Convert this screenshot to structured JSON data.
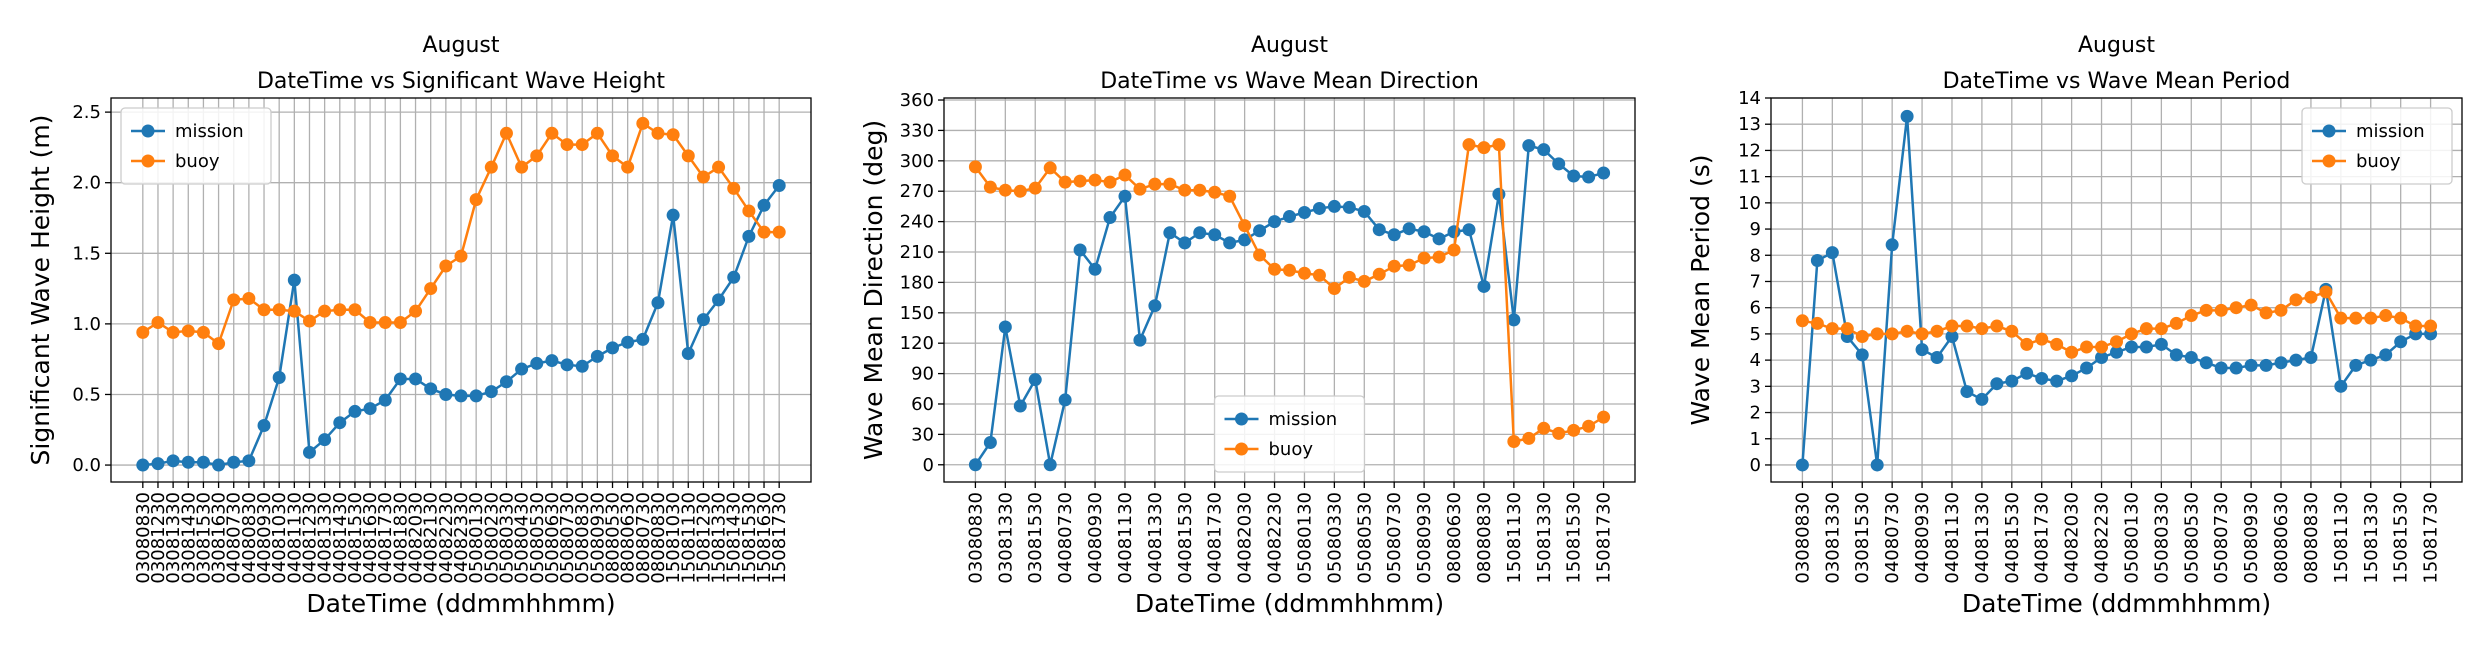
{
  "chart_data": [
    {
      "type": "line",
      "title": "August",
      "subtitle": "DateTime vs Significant Wave Height",
      "xlabel": "DateTime (ddmmhhmm)",
      "ylabel": "Significant Wave Height (m)",
      "categories": [
        "03080830",
        "03081230",
        "03081330",
        "03081430",
        "03081530",
        "03081630",
        "04080730",
        "04080830",
        "04080930",
        "04081030",
        "04081130",
        "04081230",
        "04081330",
        "04081430",
        "04081530",
        "04081630",
        "04081730",
        "04081830",
        "04082030",
        "04082130",
        "04082230",
        "04082330",
        "05080130",
        "05080230",
        "05080330",
        "05080430",
        "05080530",
        "05080630",
        "05080730",
        "05080830",
        "05080930",
        "08080530",
        "08080630",
        "08080730",
        "08080830",
        "15081030",
        "15081130",
        "15081230",
        "15081330",
        "15081430",
        "15081530",
        "15081630",
        "15081730"
      ],
      "series": [
        {
          "name": "mission",
          "color": "#1f77b4",
          "values": [
            0,
            0.01,
            0.03,
            0.02,
            0.02,
            0,
            0.02,
            0.03,
            0.28,
            0.62,
            1.31,
            0.09,
            0.18,
            0.3,
            0.38,
            0.4,
            0.46,
            0.61,
            0.61,
            0.54,
            0.5,
            0.49,
            0.49,
            0.52,
            0.59,
            0.68,
            0.72,
            0.74,
            0.71,
            0.7,
            0.77,
            0.83,
            0.87,
            0.89,
            1.15,
            1.77,
            0.79,
            1.03,
            1.17,
            1.33,
            1.62,
            1.84,
            1.98
          ]
        },
        {
          "name": "buoy",
          "color": "#ff7f0e",
          "values": [
            0.94,
            1.01,
            0.94,
            0.95,
            0.94,
            0.86,
            1.17,
            1.18,
            1.1,
            1.1,
            1.09,
            1.02,
            1.09,
            1.1,
            1.1,
            1.01,
            1.01,
            1.01,
            1.09,
            1.25,
            1.41,
            1.48,
            1.88,
            2.11,
            2.35,
            2.11,
            2.19,
            2.35,
            2.27,
            2.27,
            2.35,
            2.19,
            2.11,
            2.42,
            2.35,
            2.34,
            2.19,
            2.04,
            2.11,
            1.96,
            1.8,
            1.65,
            1.65
          ]
        }
      ],
      "ylim": [
        -0.12,
        2.6
      ],
      "yticks": [
        {
          "value": 0,
          "label": "0.0"
        },
        0.5,
        {
          "value": 1,
          "label": "1.0"
        },
        1.5,
        {
          "value": 2,
          "label": "2.0"
        },
        2.5
      ],
      "grid": true,
      "legend": "upper left"
    },
    {
      "type": "line",
      "title": "August",
      "subtitle": "DateTime vs Wave Mean Direction",
      "xlabel": "DateTime (ddmmhhmm)",
      "ylabel": "Wave Mean Direction (deg)",
      "categories": [
        "03080830",
        null,
        "03081330",
        null,
        "03081530",
        null,
        "04080730",
        null,
        "04080930",
        null,
        "04081130",
        null,
        "04081330",
        null,
        "04081530",
        null,
        "04081730",
        null,
        "04082030",
        null,
        "04082230",
        null,
        "05080130",
        null,
        "05080330",
        null,
        "05080530",
        null,
        "05080730",
        null,
        "05080930",
        null,
        "08080630",
        null,
        "08080830",
        null,
        "15081130",
        null,
        "15081330",
        null,
        "15081530",
        null,
        "15081730"
      ],
      "series": [
        {
          "name": "mission",
          "color": "#1f77b4",
          "values": [
            0,
            22,
            136,
            58,
            84,
            0,
            64,
            212,
            193,
            244,
            265,
            123,
            157,
            229,
            219,
            229,
            227,
            219,
            222,
            231,
            240,
            245,
            249,
            253,
            255,
            254,
            250,
            232,
            227,
            233,
            230,
            223,
            230,
            232,
            176,
            267,
            143,
            315,
            311,
            297,
            285,
            284,
            288
          ]
        },
        {
          "name": "buoy",
          "color": "#ff7f0e",
          "values": [
            294,
            274,
            271,
            270,
            273,
            293,
            279,
            280,
            281,
            279,
            286,
            272,
            277,
            277,
            271,
            271,
            269,
            265,
            236,
            207,
            193,
            192,
            189,
            187,
            174,
            185,
            181,
            188,
            196,
            197,
            204,
            205,
            212,
            316,
            313,
            316,
            23,
            26,
            36,
            31,
            34,
            38,
            47
          ]
        }
      ],
      "ylim": [
        -17,
        362
      ],
      "yticks": [
        0,
        30,
        60,
        90,
        120,
        150,
        180,
        210,
        240,
        270,
        300,
        330,
        360
      ],
      "grid": true,
      "legend": "lower center"
    },
    {
      "type": "line",
      "title": "August",
      "subtitle": "DateTime vs Wave Mean Period",
      "xlabel": "DateTime (ddmmhhmm)",
      "ylabel": "Wave Mean Period (s)",
      "categories": [
        "03080830",
        null,
        "03081330",
        null,
        "03081530",
        null,
        "04080730",
        null,
        "04080930",
        null,
        "04081130",
        null,
        "04081330",
        null,
        "04081530",
        null,
        "04081730",
        null,
        "04082030",
        null,
        "04082230",
        null,
        "05080130",
        null,
        "05080330",
        null,
        "05080530",
        null,
        "05080730",
        null,
        "05080930",
        null,
        "08080630",
        null,
        "08080830",
        null,
        "15081130",
        null,
        "15081330",
        null,
        "15081530",
        null,
        "15081730"
      ],
      "series": [
        {
          "name": "mission",
          "color": "#1f77b4",
          "values": [
            0,
            7.8,
            8.1,
            4.9,
            4.2,
            0,
            8.4,
            13.3,
            4.4,
            4.1,
            4.9,
            2.8,
            2.5,
            3.1,
            3.2,
            3.5,
            3.3,
            3.2,
            3.4,
            3.7,
            4.1,
            4.3,
            4.5,
            4.5,
            4.6,
            4.2,
            4.1,
            3.9,
            3.7,
            3.7,
            3.8,
            3.8,
            3.9,
            4.0,
            4.1,
            6.7,
            3.0,
            3.8,
            4.0,
            4.2,
            4.7,
            5.0,
            5.0
          ]
        },
        {
          "name": "buoy",
          "color": "#ff7f0e",
          "values": [
            5.5,
            5.4,
            5.2,
            5.2,
            4.9,
            5.0,
            5.0,
            5.1,
            5.0,
            5.1,
            5.3,
            5.3,
            5.2,
            5.3,
            5.1,
            4.6,
            4.8,
            4.6,
            4.3,
            4.5,
            4.5,
            4.7,
            5.0,
            5.2,
            5.2,
            5.4,
            5.7,
            5.9,
            5.9,
            6.0,
            6.1,
            5.8,
            5.9,
            6.3,
            6.4,
            6.6,
            5.6,
            5.6,
            5.6,
            5.7,
            5.6,
            5.3,
            5.3
          ]
        }
      ],
      "ylim": [
        -0.65,
        14
      ],
      "yticks": [
        0,
        1,
        2,
        3,
        4,
        5,
        6,
        7,
        8,
        9,
        10,
        11,
        12,
        13,
        14
      ],
      "grid": true,
      "legend": "upper right"
    }
  ]
}
